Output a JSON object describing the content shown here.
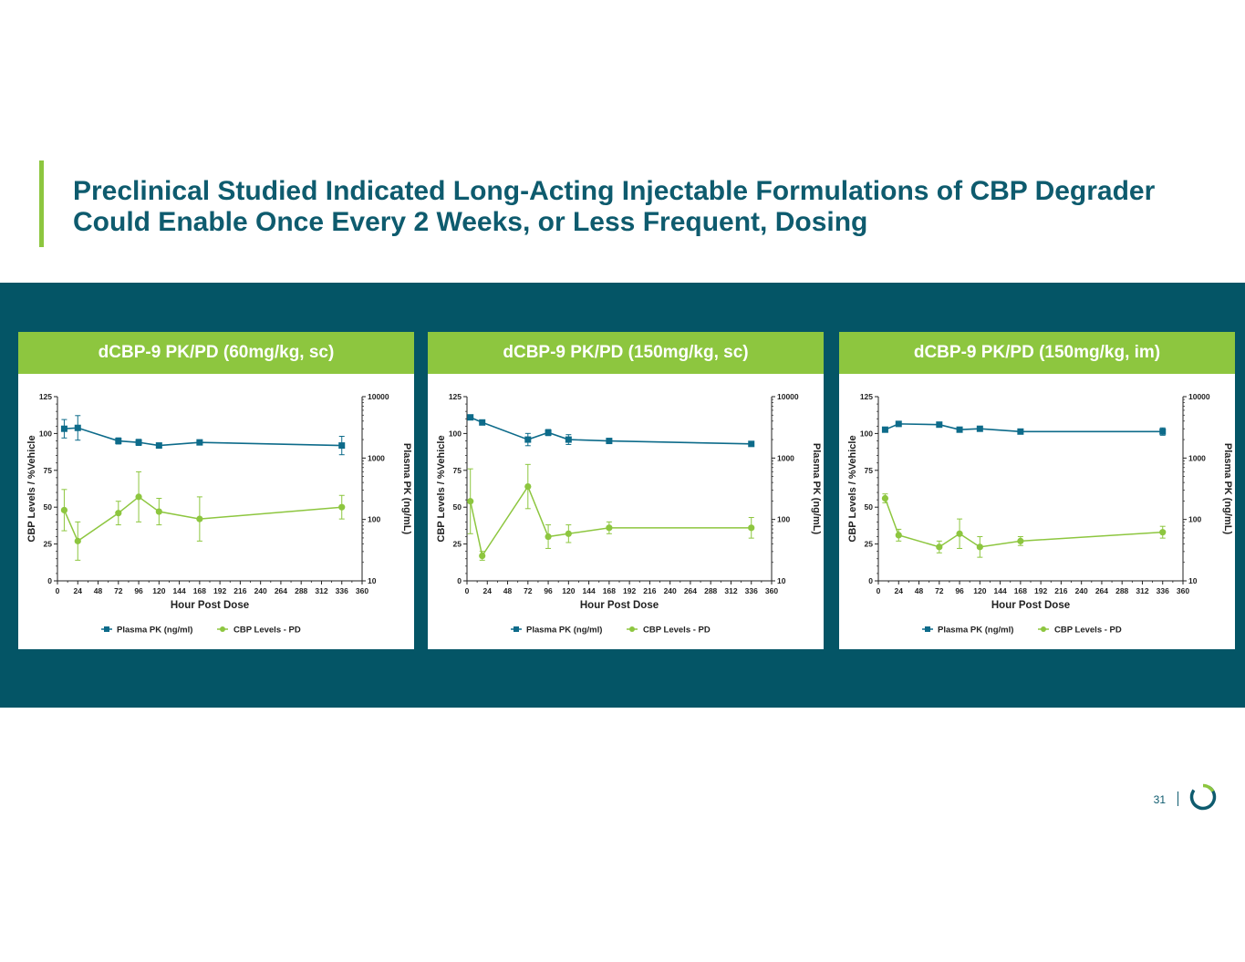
{
  "slide": {
    "title": "Preclinical Studied Indicated Long-Acting Injectable Formulations of CBP Degrader Could Enable Once Every 2 Weeks, or Less Frequent, Dosing",
    "page_number": "31",
    "accent_color": "#8dc63f",
    "band_color": "#045566",
    "title_color": "#0e5b6e",
    "logo_icon": "ring-logo-icon"
  },
  "chart_data": [
    {
      "type": "line",
      "panel_title": "dCBP-9 PK/PD (60mg/kg, sc)",
      "xlabel": "Hour Post Dose",
      "ylabel_left": "CBP Levels / %Vehicle",
      "ylabel_right": "Plasma  PK (ng/mL)",
      "xlim": [
        0,
        360
      ],
      "xticks": [
        0,
        24,
        48,
        72,
        96,
        120,
        144,
        168,
        192,
        216,
        240,
        264,
        288,
        312,
        336,
        360
      ],
      "ylim_left": [
        0,
        125
      ],
      "yticks_left": [
        0,
        25,
        50,
        75,
        100,
        125
      ],
      "ylim_right": [
        10,
        10000
      ],
      "yticks_right": [
        10,
        100,
        1000,
        10000
      ],
      "yscale_right": "log",
      "legend": [
        {
          "label": "Plasma PK (ng/ml)",
          "marker": "square",
          "color": "#0d6b8a"
        },
        {
          "label": "CBP Levels - PD",
          "marker": "circle",
          "color": "#8dc63f"
        }
      ],
      "series": [
        {
          "name": "Plasma PK (ng/ml)",
          "axis": "right",
          "color": "#0d6b8a",
          "marker": "square",
          "x": [
            8,
            24,
            72,
            96,
            120,
            168,
            336
          ],
          "y": [
            3000,
            3100,
            1900,
            1800,
            1600,
            1800,
            1600
          ],
          "err": [
            0.15,
            0.2,
            0.05,
            0.05,
            0.03,
            0.03,
            0.15
          ]
        },
        {
          "name": "CBP Levels - PD",
          "axis": "left",
          "color": "#8dc63f",
          "marker": "circle",
          "x": [
            8,
            24,
            72,
            96,
            120,
            168,
            336
          ],
          "y": [
            48,
            27,
            46,
            57,
            47,
            42,
            50
          ],
          "err": [
            14,
            13,
            8,
            17,
            9,
            15,
            8
          ]
        }
      ]
    },
    {
      "type": "line",
      "panel_title": "dCBP-9 PK/PD (150mg/kg, sc)",
      "xlabel": "Hour Post Dose",
      "ylabel_left": "CBP Levels / %Vehicle",
      "ylabel_right": "Plasma  PK (ng/mL)",
      "xlim": [
        0,
        360
      ],
      "xticks": [
        0,
        24,
        48,
        72,
        96,
        120,
        144,
        168,
        192,
        216,
        240,
        264,
        288,
        312,
        336,
        360
      ],
      "ylim_left": [
        0,
        125
      ],
      "yticks_left": [
        0,
        25,
        50,
        75,
        100,
        125
      ],
      "ylim_right": [
        10,
        10000
      ],
      "yticks_right": [
        10,
        100,
        1000,
        10000
      ],
      "yscale_right": "log",
      "legend": [
        {
          "label": "Plasma PK (ng/ml)",
          "marker": "square",
          "color": "#0d6b8a"
        },
        {
          "label": "CBP Levels - PD",
          "marker": "circle",
          "color": "#8dc63f"
        }
      ],
      "series": [
        {
          "name": "Plasma PK (ng/ml)",
          "axis": "right",
          "color": "#0d6b8a",
          "marker": "square",
          "x": [
            4,
            18,
            72,
            96,
            120,
            168,
            336
          ],
          "y": [
            4600,
            3800,
            2000,
            2600,
            2000,
            1900,
            1700
          ],
          "err": [
            0.02,
            0.02,
            0.1,
            0.05,
            0.08,
            0.03,
            0.03
          ]
        },
        {
          "name": "CBP Levels - PD",
          "axis": "left",
          "color": "#8dc63f",
          "marker": "circle",
          "x": [
            4,
            18,
            72,
            96,
            120,
            168,
            336
          ],
          "y": [
            54,
            17,
            64,
            30,
            32,
            36,
            36
          ],
          "err": [
            22,
            3,
            15,
            8,
            6,
            4,
            7
          ]
        }
      ]
    },
    {
      "type": "line",
      "panel_title": "dCBP-9 PK/PD (150mg/kg, im)",
      "xlabel": "Hour Post Dose",
      "ylabel_left": "CBP Levels / %Vehicle",
      "ylabel_right": "Plasma  PK (ng/mL)",
      "xlim": [
        0,
        360
      ],
      "xticks": [
        0,
        24,
        48,
        72,
        96,
        120,
        144,
        168,
        192,
        216,
        240,
        264,
        288,
        312,
        336,
        360
      ],
      "ylim_left": [
        0,
        125
      ],
      "yticks_left": [
        0,
        25,
        50,
        75,
        100,
        125
      ],
      "ylim_right": [
        10,
        10000
      ],
      "yscale_right": "log",
      "yticks_right": [
        10,
        100,
        1000,
        10000
      ],
      "legend": [
        {
          "label": "Plasma PK (ng/ml)",
          "marker": "square",
          "color": "#0d6b8a"
        },
        {
          "label": "CBP Levels - PD",
          "marker": "circle",
          "color": "#8dc63f"
        }
      ],
      "series": [
        {
          "name": "Plasma PK (ng/ml)",
          "axis": "right",
          "color": "#0d6b8a",
          "marker": "square",
          "x": [
            8,
            24,
            72,
            96,
            120,
            168,
            336
          ],
          "y": [
            2900,
            3600,
            3500,
            2900,
            3000,
            2700,
            2700
          ],
          "err": [
            0.02,
            0.02,
            0.02,
            0.02,
            0.03,
            0.02,
            0.06
          ]
        },
        {
          "name": "CBP Levels - PD",
          "axis": "left",
          "color": "#8dc63f",
          "marker": "circle",
          "x": [
            8,
            24,
            72,
            96,
            120,
            168,
            336
          ],
          "y": [
            56,
            31,
            23,
            32,
            23,
            27,
            33
          ],
          "err": [
            3,
            4,
            4,
            10,
            7,
            3,
            4
          ]
        }
      ]
    }
  ]
}
